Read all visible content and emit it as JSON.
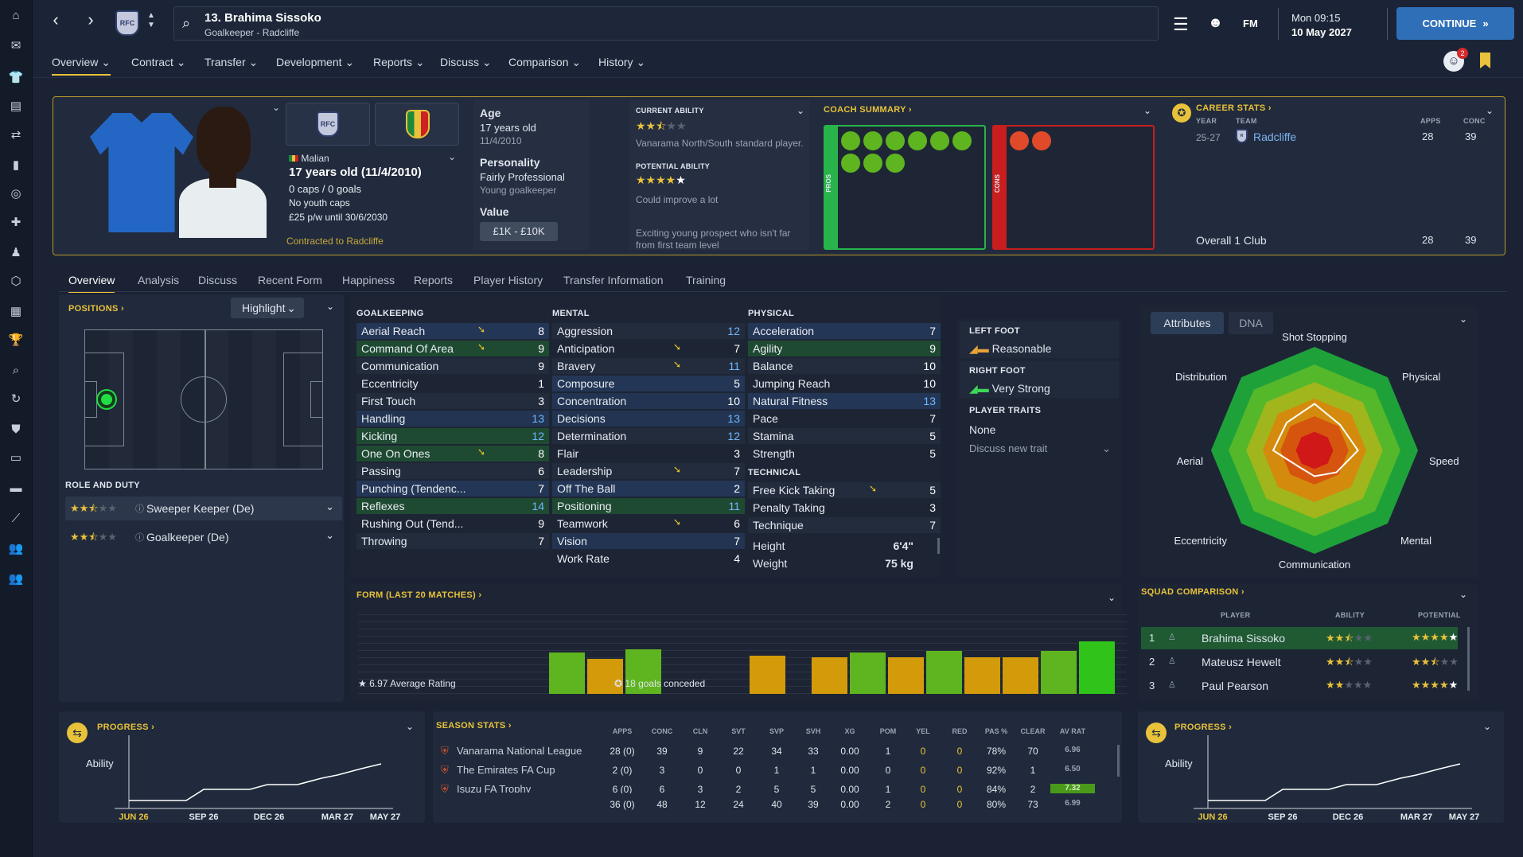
{
  "title": {
    "name": "13. Brahima Sissoko",
    "sub": "Goalkeeper - Radcliffe"
  },
  "clock": {
    "time": "Mon 09:15",
    "date": "10 May 2027"
  },
  "continue": "CONTINUE",
  "fm": "FM",
  "notif": "2",
  "nav": [
    "Overview",
    "Contract",
    "Transfer",
    "Development",
    "Reports",
    "Discuss",
    "Comparison",
    "History"
  ],
  "profile": {
    "nation": "Malian",
    "age_line": "17 years old (11/4/2010)",
    "caps": "0 caps / 0 goals",
    "youth": "No youth caps",
    "wage": "£25 p/w until 30/6/2030",
    "contract": "Contracted to Radcliffe"
  },
  "bio": {
    "age_label": "Age",
    "age": "17 years old",
    "dob": "11/4/2010",
    "pers_label": "Personality",
    "pers": "Fairly Professional",
    "pers_sub": "Young goalkeeper",
    "value_label": "Value",
    "value": "£1K - £10K"
  },
  "ability": {
    "ca_label": "CURRENT ABILITY",
    "ca_text": "Vanarama North/South standard player.",
    "pa_label": "POTENTIAL ABILITY",
    "pa_text": "Could improve a lot",
    "note": "Exciting young prospect who isn't far from first team level"
  },
  "coach": {
    "label": "COACH SUMMARY",
    "pros": "PROS",
    "cons": "CONS"
  },
  "career": {
    "label": "CAREER STATS",
    "year_h": "YEAR",
    "team_h": "TEAM",
    "apps_h": "APPS",
    "conc_h": "CONC",
    "year": "25-27",
    "team": "Radcliffe",
    "apps": "28",
    "conc": "39",
    "overall": "Overall 1 Club",
    "o_apps": "28",
    "o_conc": "39"
  },
  "tabs": [
    "Overview",
    "Analysis",
    "Discuss",
    "Recent Form",
    "Happiness",
    "Reports",
    "Player History",
    "Transfer Information",
    "Training"
  ],
  "positions": {
    "label": "POSITIONS",
    "highlight": "Highlight",
    "role_label": "ROLE AND DUTY",
    "roles": [
      "Sweeper Keeper (De)",
      "Goalkeeper (De)"
    ]
  },
  "gk": {
    "label": "GOALKEEPING",
    "rows": [
      [
        "Aerial Reach",
        "8"
      ],
      [
        "Command Of Area",
        "9"
      ],
      [
        "Communication",
        "9"
      ],
      [
        "Eccentricity",
        "1"
      ],
      [
        "First Touch",
        "3"
      ],
      [
        "Handling",
        "13"
      ],
      [
        "Kicking",
        "12"
      ],
      [
        "One On Ones",
        "8"
      ],
      [
        "Passing",
        "6"
      ],
      [
        "Punching (Tendenc...",
        "7"
      ],
      [
        "Reflexes",
        "14"
      ],
      [
        "Rushing Out (Tend...",
        "9"
      ],
      [
        "Throwing",
        "7"
      ]
    ]
  },
  "mental": {
    "label": "MENTAL",
    "rows": [
      [
        "Aggression",
        "12"
      ],
      [
        "Anticipation",
        "7"
      ],
      [
        "Bravery",
        "11"
      ],
      [
        "Composure",
        "5"
      ],
      [
        "Concentration",
        "10"
      ],
      [
        "Decisions",
        "13"
      ],
      [
        "Determination",
        "12"
      ],
      [
        "Flair",
        "3"
      ],
      [
        "Leadership",
        "7"
      ],
      [
        "Off The Ball",
        "2"
      ],
      [
        "Positioning",
        "11"
      ],
      [
        "Teamwork",
        "6"
      ],
      [
        "Vision",
        "7"
      ],
      [
        "Work Rate",
        "4"
      ]
    ]
  },
  "physical": {
    "label": "PHYSICAL",
    "rows": [
      [
        "Acceleration",
        "7"
      ],
      [
        "Agility",
        "9"
      ],
      [
        "Balance",
        "10"
      ],
      [
        "Jumping Reach",
        "10"
      ],
      [
        "Natural Fitness",
        "13"
      ],
      [
        "Pace",
        "7"
      ],
      [
        "Stamina",
        "5"
      ],
      [
        "Strength",
        "5"
      ]
    ]
  },
  "technical": {
    "label": "TECHNICAL",
    "rows": [
      [
        "Free Kick Taking",
        "5"
      ],
      [
        "Penalty Taking",
        "3"
      ],
      [
        "Technique",
        "7"
      ]
    ]
  },
  "body": {
    "height_l": "Height",
    "height": "6'4\"",
    "weight_l": "Weight",
    "weight": "75 kg"
  },
  "feet": {
    "left_l": "LEFT FOOT",
    "left": "Reasonable",
    "right_l": "RIGHT FOOT",
    "right": "Very Strong",
    "traits_l": "PLAYER TRAITS",
    "traits": "None",
    "discuss": "Discuss new trait"
  },
  "radar": {
    "tab1": "Attributes",
    "tab2": "DNA",
    "labels": [
      "Shot Stopping",
      "Physical",
      "Speed",
      "Mental",
      "Communication",
      "Eccentricity",
      "Aerial",
      "Distribution"
    ]
  },
  "form": {
    "label": "FORM (LAST 20 MATCHES)",
    "avg": "6.97 Average Rating",
    "conc": "18 goals conceded"
  },
  "squad": {
    "label": "SQUAD COMPARISON",
    "h": [
      "PLAYER",
      "ABILITY",
      "POTENTIAL"
    ],
    "rows": [
      [
        "1",
        "Brahima Sissoko"
      ],
      [
        "2",
        "Mateusz Hewelt"
      ],
      [
        "3",
        "Paul Pearson"
      ]
    ]
  },
  "progress": {
    "label": "PROGRESS",
    "ability": "Ability",
    "ticks": [
      "JUN 26",
      "SEP 26",
      "DEC 26",
      "MAR 27",
      "MAY 27"
    ]
  },
  "season": {
    "label": "SEASON STATS",
    "h": [
      "APPS",
      "CONC",
      "CLN",
      "SVT",
      "SVP",
      "SVH",
      "XG",
      "POM",
      "YEL",
      "RED",
      "PAS %",
      "CLEAR",
      "AV RAT"
    ],
    "rows": [
      {
        "c": "Vanarama National League",
        "v": [
          "28 (0)",
          "39",
          "9",
          "22",
          "34",
          "33",
          "0.00",
          "1",
          "0",
          "0",
          "78%",
          "70",
          "6.96"
        ]
      },
      {
        "c": "The Emirates FA Cup",
        "v": [
          "2 (0)",
          "3",
          "0",
          "0",
          "1",
          "1",
          "0.00",
          "0",
          "0",
          "0",
          "92%",
          "1",
          "6.50"
        ]
      },
      {
        "c": "Isuzu FA Trophy",
        "v": [
          "6 (0)",
          "6",
          "3",
          "2",
          "5",
          "5",
          "0.00",
          "1",
          "0",
          "0",
          "84%",
          "2",
          "7.32"
        ]
      }
    ],
    "total": [
      "36 (0)",
      "48",
      "12",
      "24",
      "40",
      "39",
      "0.00",
      "2",
      "0",
      "0",
      "80%",
      "73",
      "6.99"
    ]
  },
  "colors": {
    "accent": "#e8c23a",
    "green": "#5fb51f",
    "orange": "#d39b0a"
  }
}
